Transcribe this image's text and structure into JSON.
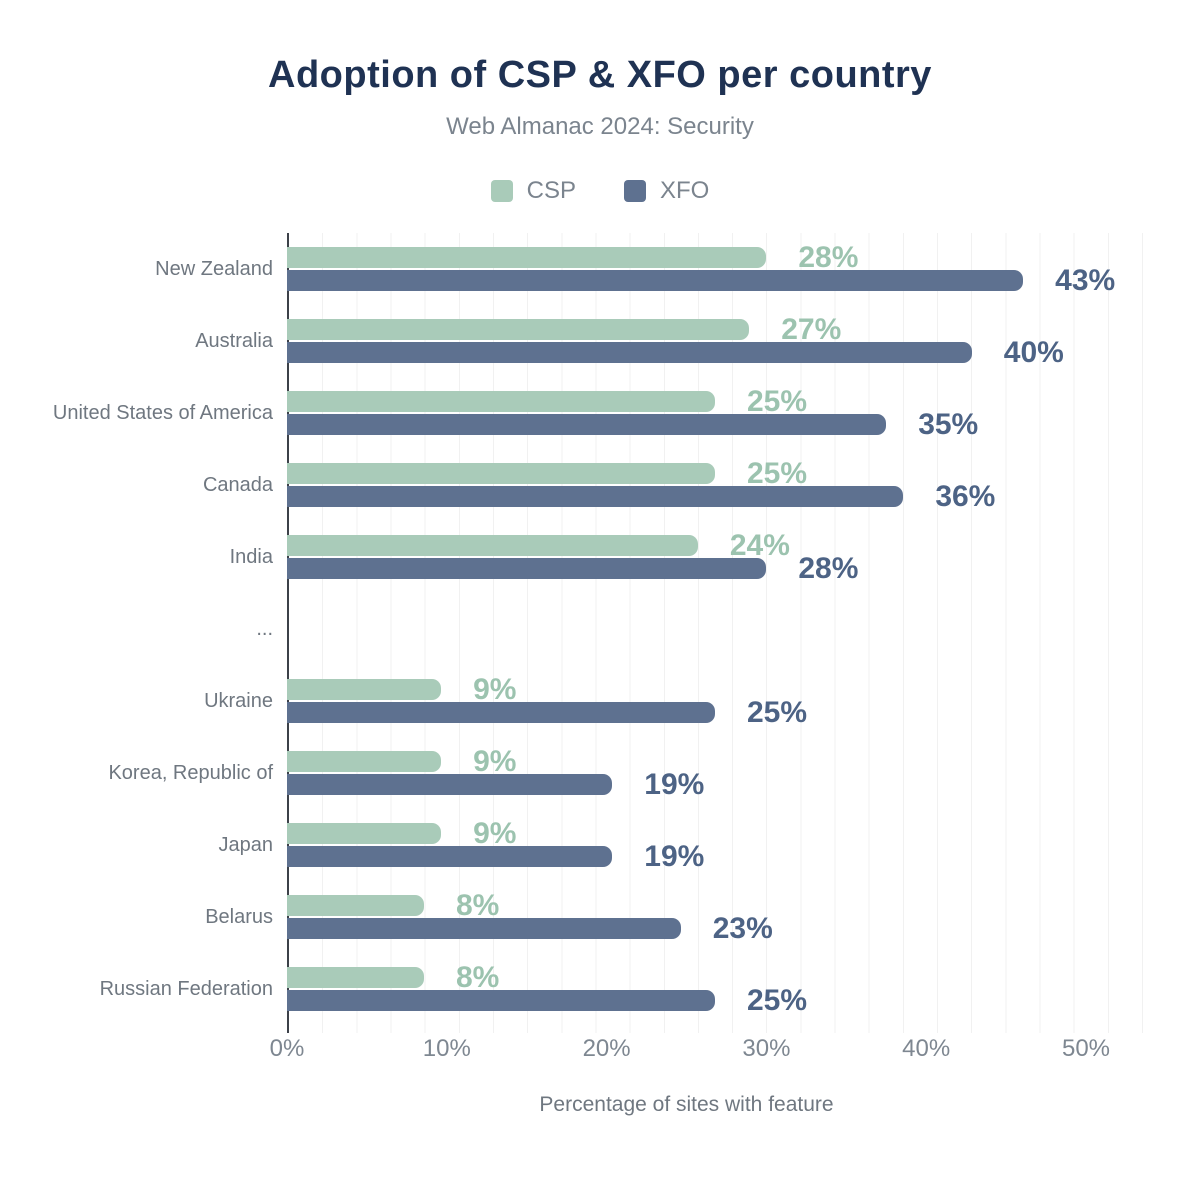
{
  "title": "Adoption of CSP & XFO per country",
  "subtitle": "Web Almanac 2024: Security",
  "legend": [
    {
      "label": "CSP",
      "color": "#a9cbb9"
    },
    {
      "label": "XFO",
      "color": "#5e7190"
    }
  ],
  "colors": {
    "title_text": "#1f3253",
    "muted_text": "#7b848e",
    "category_text": "#6f7780",
    "axis_line": "#3c4149",
    "gridline": "#f1f1f1",
    "csp_bar": "#a9cbb9",
    "csp_value_label": "#9cc3af",
    "xfo_bar": "#5e7190",
    "xfo_value_label": "#4d6385"
  },
  "chart_data": {
    "type": "bar",
    "orientation": "horizontal",
    "title": "Adoption of CSP & XFO per country",
    "subtitle": "Web Almanac 2024: Security",
    "categories": [
      "New Zealand",
      "Australia",
      "United States of America",
      "Canada",
      "India",
      "...",
      "Ukraine",
      "Korea, Republic of",
      "Japan",
      "Belarus",
      "Russian Federation"
    ],
    "series": [
      {
        "name": "CSP",
        "color": "#a9cbb9",
        "label_color": "#9cc3af",
        "values": [
          28,
          27,
          25,
          25,
          24,
          null,
          9,
          9,
          9,
          8,
          8
        ]
      },
      {
        "name": "XFO",
        "color": "#5e7190",
        "label_color": "#4d6385",
        "values": [
          43,
          40,
          35,
          36,
          28,
          null,
          25,
          19,
          19,
          23,
          25
        ]
      }
    ],
    "value_suffix": "%",
    "xlabel": "Percentage of sites with feature",
    "ylabel": "",
    "xlim": [
      0,
      50
    ],
    "x_ticks": [
      "0%",
      "10%",
      "20%",
      "30%",
      "40%",
      "50%"
    ],
    "grid": "vertical minor gridlines every 2%",
    "legend_position": "top center"
  }
}
